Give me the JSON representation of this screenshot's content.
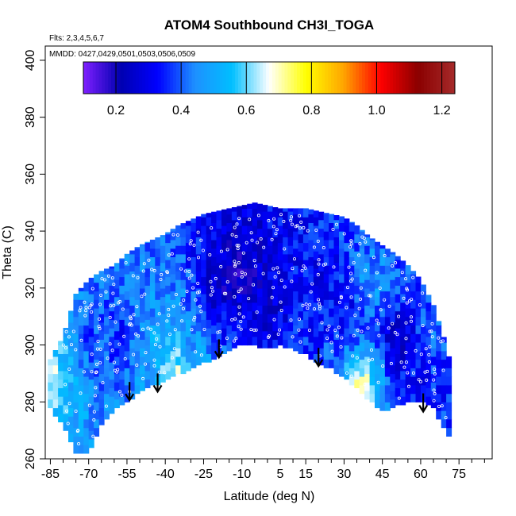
{
  "chart_data": {
    "type": "heatmap",
    "title": "ATOM4 Southbound CH3I_TOGA",
    "flights_note": "Flts: 2,3,4,5,6,7",
    "dates_note": "MMDD: 0427,0429,0501,0503,0506,0509",
    "xlabel": "Latitude (deg N)",
    "ylabel": "Theta (C)",
    "xlim": [
      -87,
      88
    ],
    "ylim": [
      260,
      405
    ],
    "x_ticks": [
      -85,
      -70,
      -55,
      -40,
      -25,
      -10,
      5,
      15,
      30,
      45,
      60,
      75
    ],
    "y_ticks": [
      260,
      280,
      300,
      320,
      340,
      360,
      380,
      400
    ],
    "colorbar": {
      "min": 0.1,
      "max": 1.24,
      "ticks": [
        0.2,
        0.4,
        0.6,
        0.8,
        1.0,
        1.2
      ],
      "tick_labels": [
        "0.2",
        "0.4",
        "0.6",
        "0.8",
        "1.0",
        "1.2"
      ],
      "colors": [
        "#7f1fff",
        "#0000b0",
        "#0000ff",
        "#1e90ff",
        "#00bfff",
        "#ffffff",
        "#ffff00",
        "#ffa500",
        "#ff0000",
        "#8b0000",
        "#a52a2a"
      ]
    },
    "field": {
      "description_x_grid_deg": 2,
      "top_boundary": [
        [
          -85,
          295
        ],
        [
          -80,
          303
        ],
        [
          -75,
          318
        ],
        [
          -70,
          323
        ],
        [
          -65,
          326
        ],
        [
          -60,
          328
        ],
        [
          -55,
          332
        ],
        [
          -50,
          335
        ],
        [
          -45,
          337
        ],
        [
          -40,
          339
        ],
        [
          -35,
          342
        ],
        [
          -30,
          344
        ],
        [
          -25,
          346
        ],
        [
          -20,
          347
        ],
        [
          -15,
          348
        ],
        [
          -10,
          349
        ],
        [
          -5,
          350
        ],
        [
          0,
          349
        ],
        [
          5,
          348
        ],
        [
          10,
          348
        ],
        [
          15,
          348
        ],
        [
          20,
          347
        ],
        [
          25,
          346
        ],
        [
          30,
          345
        ],
        [
          35,
          342
        ],
        [
          40,
          338
        ],
        [
          45,
          335
        ],
        [
          50,
          332
        ],
        [
          55,
          328
        ],
        [
          60,
          323
        ],
        [
          65,
          314
        ],
        [
          70,
          300
        ],
        [
          72,
          292
        ]
      ],
      "bottom_boundary": [
        [
          -85,
          278
        ],
        [
          -80,
          272
        ],
        [
          -75,
          262
        ],
        [
          -70,
          262
        ],
        [
          -65,
          272
        ],
        [
          -60,
          278
        ],
        [
          -55,
          280
        ],
        [
          -50,
          284
        ],
        [
          -45,
          286
        ],
        [
          -40,
          288
        ],
        [
          -35,
          290
        ],
        [
          -30,
          292
        ],
        [
          -25,
          294
        ],
        [
          -20,
          296
        ],
        [
          -15,
          298
        ],
        [
          -10,
          301
        ],
        [
          -5,
          300
        ],
        [
          0,
          299
        ],
        [
          5,
          300
        ],
        [
          10,
          299
        ],
        [
          15,
          297
        ],
        [
          20,
          294
        ],
        [
          25,
          292
        ],
        [
          30,
          289
        ],
        [
          35,
          285
        ],
        [
          40,
          281
        ],
        [
          45,
          277
        ],
        [
          50,
          279
        ],
        [
          55,
          280
        ],
        [
          60,
          281
        ],
        [
          65,
          278
        ],
        [
          70,
          270
        ],
        [
          72,
          266
        ]
      ],
      "levels": [
        {
          "lat": -85,
          "theta": 288,
          "value": 0.75
        },
        {
          "lat": -80,
          "theta": 290,
          "value": 0.55
        },
        {
          "lat": -75,
          "theta": 290,
          "value": 0.45
        },
        {
          "lat": -70,
          "theta": 300,
          "value": 0.35
        },
        {
          "lat": -65,
          "theta": 295,
          "value": 0.4
        },
        {
          "lat": -60,
          "theta": 300,
          "value": 0.3
        },
        {
          "lat": -50,
          "theta": 290,
          "value": 0.45
        },
        {
          "lat": -40,
          "theta": 292,
          "value": 0.55
        },
        {
          "lat": -37,
          "theta": 288,
          "value": 0.8
        },
        {
          "lat": -30,
          "theta": 295,
          "value": 0.45
        },
        {
          "lat": -20,
          "theta": 320,
          "value": 0.2
        },
        {
          "lat": -10,
          "theta": 325,
          "value": 0.18
        },
        {
          "lat": 0,
          "theta": 310,
          "value": 0.25
        },
        {
          "lat": 10,
          "theta": 300,
          "value": 0.35
        },
        {
          "lat": 20,
          "theta": 320,
          "value": 0.3
        },
        {
          "lat": 30,
          "theta": 310,
          "value": 0.3
        },
        {
          "lat": 36,
          "theta": 285,
          "value": 0.75
        },
        {
          "lat": 40,
          "theta": 320,
          "value": 0.5
        },
        {
          "lat": 50,
          "theta": 300,
          "value": 0.2
        },
        {
          "lat": 60,
          "theta": 290,
          "value": 0.3
        },
        {
          "lat": 65,
          "theta": 300,
          "value": 0.45
        },
        {
          "lat": 70,
          "theta": 285,
          "value": 0.35
        }
      ]
    },
    "arrows": [
      {
        "lat": -54,
        "theta": 287
      },
      {
        "lat": -43,
        "theta": 290
      },
      {
        "lat": -19,
        "theta": 302
      },
      {
        "lat": 20,
        "theta": 299
      },
      {
        "lat": 61,
        "theta": 283
      }
    ]
  }
}
